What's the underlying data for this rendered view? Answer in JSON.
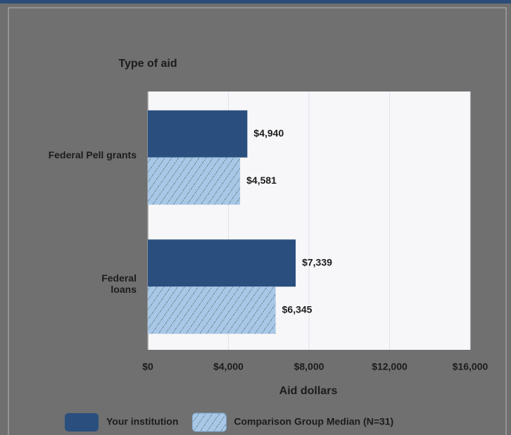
{
  "chart_data": {
    "type": "hbar",
    "y_axis_title": "Type of aid",
    "x_axis_title": "Aid dollars",
    "categories": [
      "Federal Pell grants",
      "Federal\nloans"
    ],
    "series": [
      {
        "name": "Your institution",
        "color": "#2a4f7f",
        "values": [
          4940,
          7339
        ],
        "value_labels": [
          "$4,940",
          "$7,339"
        ]
      },
      {
        "name": "Comparison Group Median (N=31)",
        "color": "#a9c8e8",
        "pattern": "hatch",
        "values": [
          4581,
          6345
        ],
        "value_labels": [
          "$4,581",
          "$6,345"
        ]
      }
    ],
    "xlim": [
      0,
      16000
    ],
    "xticks": [
      {
        "value": 0,
        "label": "$0"
      },
      {
        "value": 4000,
        "label": "$4,000"
      },
      {
        "value": 8000,
        "label": "$8,000"
      },
      {
        "value": 12000,
        "label": "$12,000"
      },
      {
        "value": 16000,
        "label": "$16,000"
      }
    ],
    "grid": true
  }
}
